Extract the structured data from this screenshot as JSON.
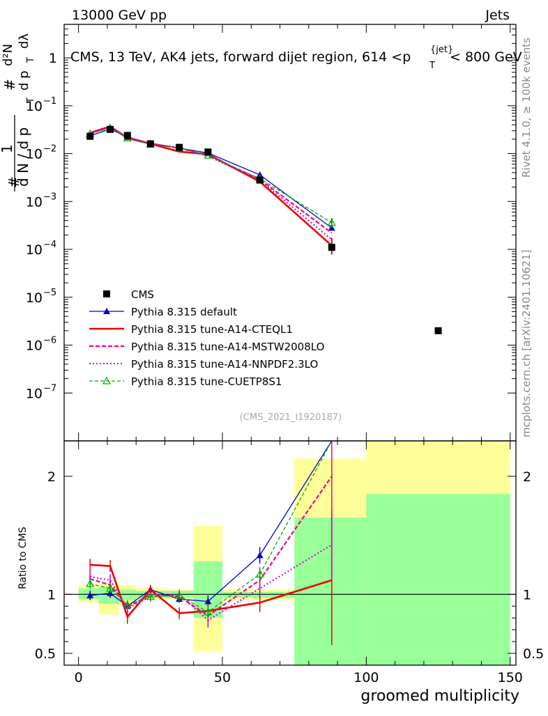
{
  "header": {
    "left": "13000 GeV pp",
    "right": "Jets"
  },
  "side_labels": {
    "rivet": "Rivet 4.1.0, ≥ 100k events",
    "mcplots": "mcplots.cern.ch [arXiv:2401.10621]"
  },
  "watermark": "(CMS_2021_I1920187)",
  "chart_data": {
    "type": "line",
    "title_parts": {
      "prefix": "CMS, 13 TeV, AK4 jets, forward dijet region, 614 <p",
      "sub": "T",
      "sup": "{jet}",
      "suffix": "< 800 GeV"
    },
    "ylabel_parts": {
      "hash": "#",
      "one": "1",
      "dN": "d N / d p",
      "T": "T",
      "d2N": "d²N",
      "dpTdl": "d p",
      "dl": "dλ"
    },
    "xlabel": "groomed multiplicity",
    "ratio_ylabel": "Ratio to CMS",
    "xlim": [
      -5,
      152
    ],
    "ylim_main": [
      1e-08,
      5
    ],
    "yscale_main": "log",
    "ylim_ratio": [
      0.4,
      2.3
    ],
    "x_ticks": [
      0,
      50,
      100,
      150
    ],
    "x_tick_labels": [
      "0",
      "50",
      "100",
      "150"
    ],
    "main_y_ticks": [
      1,
      0.1,
      0.01,
      0.001,
      0.0001,
      1e-05,
      1e-06,
      1e-07
    ],
    "main_y_tick_labels": [
      {
        "base": "1",
        "exp": ""
      },
      {
        "base": "10",
        "exp": "−1"
      },
      {
        "base": "10",
        "exp": "−2"
      },
      {
        "base": "10",
        "exp": "−3"
      },
      {
        "base": "10",
        "exp": "−4"
      },
      {
        "base": "10",
        "exp": "−5"
      },
      {
        "base": "10",
        "exp": "−6"
      },
      {
        "base": "10",
        "exp": "−7"
      }
    ],
    "ratio_y_ticks": [
      0.5,
      1,
      2
    ],
    "ratio_y_tick_labels": [
      "0.5",
      "1",
      "2"
    ],
    "cms": {
      "name": "CMS",
      "x": [
        4,
        11,
        17,
        25,
        35,
        45,
        63,
        88,
        125
      ],
      "y": [
        0.023,
        0.032,
        0.024,
        0.016,
        0.0135,
        0.0108,
        0.0028,
        0.00011,
        2e-06
      ],
      "xerr": [
        3,
        3,
        3,
        5,
        5,
        5,
        12,
        12,
        25
      ]
    },
    "bands": [
      {
        "x0": 0,
        "x1": 7,
        "stat": [
          0.96,
          1.05
        ],
        "tot": [
          0.93,
          1.08
        ]
      },
      {
        "x0": 7,
        "x1": 14,
        "stat": [
          0.92,
          1.06
        ],
        "tot": [
          0.83,
          1.09
        ]
      },
      {
        "x0": 14,
        "x1": 20,
        "stat": [
          0.95,
          1.04
        ],
        "tot": [
          0.91,
          1.08
        ]
      },
      {
        "x0": 20,
        "x1": 30,
        "stat": [
          0.97,
          1.03
        ],
        "tot": [
          0.95,
          1.06
        ]
      },
      {
        "x0": 30,
        "x1": 40,
        "stat": [
          0.97,
          1.03
        ],
        "tot": [
          0.96,
          1.04
        ]
      },
      {
        "x0": 40,
        "x1": 50,
        "stat": [
          0.8,
          1.28
        ],
        "tot": [
          0.52,
          1.58
        ]
      },
      {
        "x0": 50,
        "x1": 75,
        "stat": [
          0.97,
          1.02
        ],
        "tot": [
          0.95,
          1.04
        ]
      },
      {
        "x0": 75,
        "x1": 100,
        "stat": [
          0.0,
          1.65
        ],
        "tot": [
          0.0,
          2.15
        ]
      },
      {
        "x0": 100,
        "x1": 150,
        "stat": [
          0.0,
          1.85
        ],
        "tot": [
          0.0,
          2.6
        ]
      }
    ],
    "series": [
      {
        "name": "Pythia 8.315 default",
        "color": "#0000cc",
        "dash": "",
        "width": 1.3,
        "marker": "triangle-filled",
        "x": [
          4,
          11,
          17,
          25,
          35,
          45,
          63,
          88
        ],
        "y": [
          0.0235,
          0.0325,
          0.022,
          0.0165,
          0.013,
          0.0103,
          0.0036,
          0.00028
        ],
        "ratio": [
          0.99,
          1.01,
          0.9,
          1.04,
          0.96,
          0.94,
          1.33,
          2.6
        ],
        "ratio_err": [
          0.04,
          0.04,
          0.04,
          0.03,
          0.03,
          0.05,
          0.07,
          0.3
        ]
      },
      {
        "name": "Pythia 8.315 tune-A14-CTEQL1",
        "color": "#ee0000",
        "dash": "",
        "width": 2.6,
        "marker": "none",
        "x": [
          4,
          11,
          17,
          25,
          35,
          45,
          63,
          88
        ],
        "y": [
          0.027,
          0.037,
          0.021,
          0.016,
          0.011,
          0.0097,
          0.0026,
          0.00012
        ],
        "ratio": [
          1.25,
          1.24,
          0.81,
          1.04,
          0.84,
          0.86,
          0.93,
          1.12
        ],
        "ratio_err": [
          0.05,
          0.05,
          0.06,
          0.04,
          0.05,
          0.06,
          0.08,
          0.55
        ]
      },
      {
        "name": "Pythia 8.315 tune-A14-MSTW2008LO",
        "color": "#ee0088",
        "dash": "6,3",
        "width": 2.2,
        "marker": "none",
        "x": [
          4,
          11,
          17,
          25,
          35,
          45,
          63,
          88
        ],
        "y": [
          0.026,
          0.036,
          0.022,
          0.0163,
          0.013,
          0.0092,
          0.0029,
          0.00022
        ],
        "ratio": [
          1.13,
          1.08,
          0.89,
          1.0,
          0.98,
          0.82,
          1.12,
          2.0
        ],
        "ratio_err": [
          0.05,
          0.05,
          0.05,
          0.04,
          0.04,
          0.05,
          0.07,
          0.35
        ]
      },
      {
        "name": "Pythia 8.315 tune-A14-NNPDF2.3LO",
        "color": "#cc00cc",
        "dash": "2,3",
        "width": 2.0,
        "marker": "none",
        "x": [
          4,
          11,
          17,
          25,
          35,
          45,
          63,
          88
        ],
        "y": [
          0.0265,
          0.036,
          0.022,
          0.0158,
          0.0135,
          0.0088,
          0.0028,
          0.00016
        ],
        "ratio": [
          1.15,
          1.12,
          0.88,
          0.98,
          1.0,
          0.78,
          1.05,
          1.42
        ],
        "ratio_err": [
          0.05,
          0.05,
          0.05,
          0.04,
          0.04,
          0.06,
          0.07,
          0.3
        ]
      },
      {
        "name": "Pythia 8.315 tune-CUETP8S1",
        "color": "#00aa00",
        "dash": "5,3",
        "width": 1.3,
        "marker": "triangle-open",
        "x": [
          4,
          11,
          17,
          25,
          35,
          45,
          63,
          88
        ],
        "y": [
          0.026,
          0.0345,
          0.021,
          0.0155,
          0.0132,
          0.0092,
          0.003,
          0.00036
        ],
        "ratio": [
          1.09,
          1.05,
          0.91,
          0.98,
          0.99,
          0.85,
          1.17,
          2.9
        ],
        "ratio_err": [
          0.04,
          0.04,
          0.04,
          0.03,
          0.03,
          0.05,
          0.06,
          0.3
        ]
      }
    ]
  }
}
